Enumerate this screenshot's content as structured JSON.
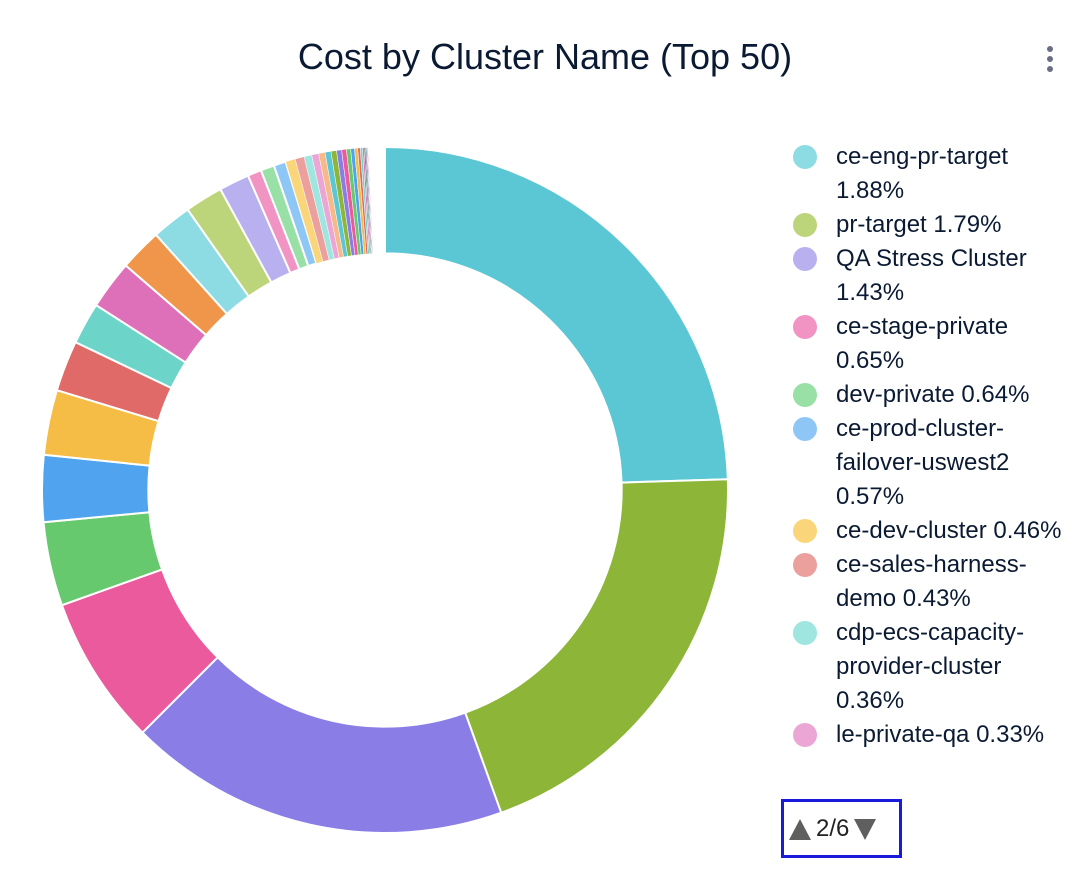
{
  "chart_data": {
    "type": "pie",
    "title": "Cost by Cluster Name (Top 50)",
    "hole": 0.69,
    "categories": [
      null,
      null,
      null,
      null,
      null,
      null,
      null,
      null,
      null,
      null,
      null,
      "ce-eng-pr-target",
      "pr-target",
      "QA Stress Cluster",
      "ce-stage-private",
      "dev-private",
      "ce-prod-cluster-failover-uswest2",
      "ce-dev-cluster",
      "ce-sales-harness-demo",
      "cdp-ecs-capacity-provider-cluster",
      "le-private-qa",
      null,
      null,
      null,
      null,
      null,
      null,
      null,
      null,
      null,
      null,
      null,
      null,
      null,
      null,
      null
    ],
    "values": [
      24.5,
      20,
      18,
      7.05,
      3.95,
      3.14,
      3.06,
      2.39,
      1.97,
      2.3,
      2.0,
      1.88,
      1.79,
      1.43,
      0.65,
      0.64,
      0.57,
      0.46,
      0.43,
      0.36,
      0.33,
      0.3,
      0.28,
      0.26,
      0.24,
      0.22,
      0.2,
      0.18,
      0.15,
      0.12,
      0.1,
      0.08,
      0.06,
      0.05,
      0.04,
      0.03
    ],
    "value_labels": [
      null,
      null,
      null,
      null,
      null,
      null,
      null,
      null,
      null,
      null,
      null,
      "1.88%",
      "1.79%",
      "1.43%",
      "0.65%",
      "0.64%",
      "0.57%",
      "0.46%",
      "0.43%",
      "0.36%",
      "0.33%",
      null,
      null,
      null,
      null,
      null,
      null,
      null,
      null,
      null,
      null,
      null,
      null,
      null,
      null,
      null
    ],
    "colors": [
      "#5bc6d4",
      "#8db538",
      "#8a7de6",
      "#ea5a9c",
      "#67c96e",
      "#4fa3ef",
      "#f6bd46",
      "#e06a67",
      "#6cd4c8",
      "#de6fb9",
      "#f0964b",
      "#8ddbe3",
      "#bcd57a",
      "#b9b1ef",
      "#f193c3",
      "#98e0a5",
      "#8ec7f5",
      "#fbd57a",
      "#eba09e",
      "#9ee6df",
      "#eba6d6",
      "#f6b98a",
      "#5bc6d4",
      "#8db538",
      "#8a7de6",
      "#ea5a9c",
      "#67c96e",
      "#4fa3ef",
      "#f6bd46",
      "#e06a67",
      "#6cd4c8",
      "#de6fb9",
      "#2f6e5e",
      "#555577",
      "#8a7de6",
      "#ea5a9c"
    ],
    "legend_first": 11,
    "legend_page": "2/6"
  }
}
